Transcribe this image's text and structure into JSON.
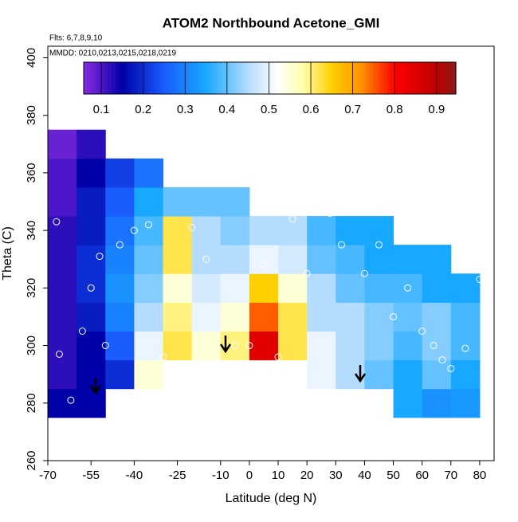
{
  "chart_data": {
    "type": "heatmap",
    "title": "ATOM2 Northbound Acetone_GMI",
    "subtitle": "Flts: 6,7,8,9,10",
    "annotation": "MMDD: 0210,0213,0215,0218,0219",
    "x_label": "Latitude (deg N)",
    "y_label": "Theta (C)",
    "xlim": [
      -70,
      85
    ],
    "ylim": [
      260,
      404
    ],
    "xticks": [
      -70,
      -55,
      -40,
      -25,
      -10,
      0,
      10,
      20,
      30,
      40,
      50,
      60,
      70,
      80
    ],
    "yticks": [
      260,
      280,
      300,
      320,
      340,
      360,
      380,
      400
    ],
    "x_edges": [
      -70,
      -60,
      -50,
      -40,
      -30,
      -20,
      -10,
      0,
      10,
      20,
      30,
      40,
      50,
      60,
      70,
      80
    ],
    "y_edges": [
      275,
      285,
      295,
      305,
      315,
      325,
      335,
      345,
      355,
      365,
      375
    ],
    "values": [
      [
        0.15,
        0.15,
        null,
        null,
        null,
        null,
        null,
        null,
        null,
        null,
        null,
        null,
        0.35,
        0.32,
        0.33
      ],
      [
        0.12,
        0.15,
        0.2,
        0.55,
        null,
        null,
        null,
        null,
        null,
        0.5,
        0.45,
        0.4,
        0.35,
        0.4,
        0.35
      ],
      [
        0.12,
        0.15,
        0.25,
        0.5,
        0.62,
        0.55,
        0.6,
        0.85,
        0.62,
        0.5,
        0.45,
        0.42,
        0.38,
        0.42,
        0.38
      ],
      [
        0.12,
        0.18,
        0.3,
        0.45,
        0.6,
        0.5,
        0.55,
        0.75,
        0.62,
        0.45,
        0.45,
        0.42,
        0.4,
        0.42,
        0.38
      ],
      [
        0.12,
        0.2,
        0.32,
        0.42,
        0.55,
        0.48,
        0.5,
        0.65,
        0.55,
        0.45,
        0.4,
        0.38,
        0.38,
        0.35,
        0.35
      ],
      [
        0.12,
        0.2,
        0.3,
        0.4,
        0.62,
        0.45,
        0.45,
        0.5,
        0.48,
        0.4,
        0.38,
        0.35,
        0.35,
        0.35,
        null
      ],
      [
        0.12,
        0.18,
        0.28,
        0.38,
        0.62,
        0.45,
        0.42,
        0.45,
        0.45,
        0.38,
        0.35,
        0.35,
        null,
        null,
        null
      ],
      [
        0.1,
        0.18,
        0.25,
        0.35,
        0.4,
        0.4,
        0.4,
        null,
        null,
        null,
        null,
        null,
        null,
        null,
        null
      ],
      [
        0.1,
        0.15,
        0.22,
        0.28,
        null,
        null,
        null,
        null,
        null,
        null,
        null,
        null,
        null,
        null,
        null
      ],
      [
        0.08,
        0.12,
        null,
        null,
        null,
        null,
        null,
        null,
        null,
        null,
        null,
        null,
        null,
        null,
        null
      ]
    ],
    "colorscale": [
      [
        0.058,
        "#8a2be2"
      ],
      [
        0.15,
        "#0000a8"
      ],
      [
        0.25,
        "#1a5cff"
      ],
      [
        0.35,
        "#18a8ff"
      ],
      [
        0.45,
        "#b4dcff"
      ],
      [
        0.52,
        "#ffffff"
      ],
      [
        0.58,
        "#ffffb0"
      ],
      [
        0.65,
        "#ffd000"
      ],
      [
        0.72,
        "#ff9400"
      ],
      [
        0.8,
        "#ff0000"
      ],
      [
        0.9,
        "#c00000"
      ],
      [
        0.946,
        "#8b1a1a"
      ]
    ],
    "colorbar_lim": [
      0.058,
      0.946
    ],
    "colorbar_ticks": [
      0.1,
      0.2,
      0.3,
      0.4,
      0.5,
      0.6,
      0.7,
      0.8,
      0.9
    ],
    "observations": {
      "x": [
        -67,
        -66,
        -62,
        -58,
        -55,
        -52,
        -50,
        -45,
        -40,
        -35,
        -30,
        -20,
        -15,
        -5,
        0,
        5,
        10,
        15,
        20,
        28,
        32,
        40,
        45,
        50,
        55,
        60,
        64,
        67,
        70,
        75,
        80
      ],
      "y": [
        343,
        297,
        281,
        305,
        320,
        331,
        300,
        335,
        340,
        342,
        296,
        341,
        330,
        300,
        300,
        328,
        296,
        344,
        325,
        346,
        335,
        325,
        335,
        310,
        320,
        305,
        300,
        295,
        292,
        299,
        323
      ]
    }
  }
}
